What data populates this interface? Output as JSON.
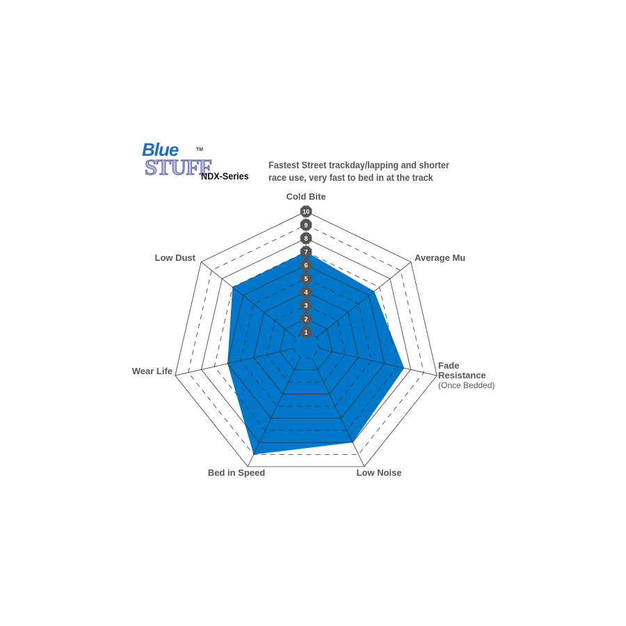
{
  "logo": {
    "line1": "Blue",
    "line2": "STUFF",
    "tm": "TM"
  },
  "series_name": "NDX-Series",
  "description": [
    "Fastest Street trackday/lapping and shorter",
    "race use, very fast to bed in at the track"
  ],
  "colors": {
    "fill": "#0077c8",
    "grid": "#333333",
    "tick_badge": "#555555",
    "text": "#555555"
  },
  "chart_data": {
    "type": "radar",
    "axes": [
      {
        "label": "Cold Bite",
        "value": 7
      },
      {
        "label": "Average Mu",
        "value": 6.5
      },
      {
        "label": "Fade Resistance",
        "sublabel": "(Once Bedded)",
        "value": 7.5
      },
      {
        "label": "Low Noise",
        "value": 8
      },
      {
        "label": "Bed in Speed",
        "value": 9
      },
      {
        "label": "Wear Life",
        "value": 6
      },
      {
        "label": "Low Dust",
        "value": 7
      }
    ],
    "range": [
      0,
      10
    ],
    "ticks": [
      "1",
      "2",
      "3",
      "4",
      "5",
      "6",
      "7",
      "8",
      "9",
      "10"
    ],
    "grid": "alternating solid/dashed rings"
  }
}
